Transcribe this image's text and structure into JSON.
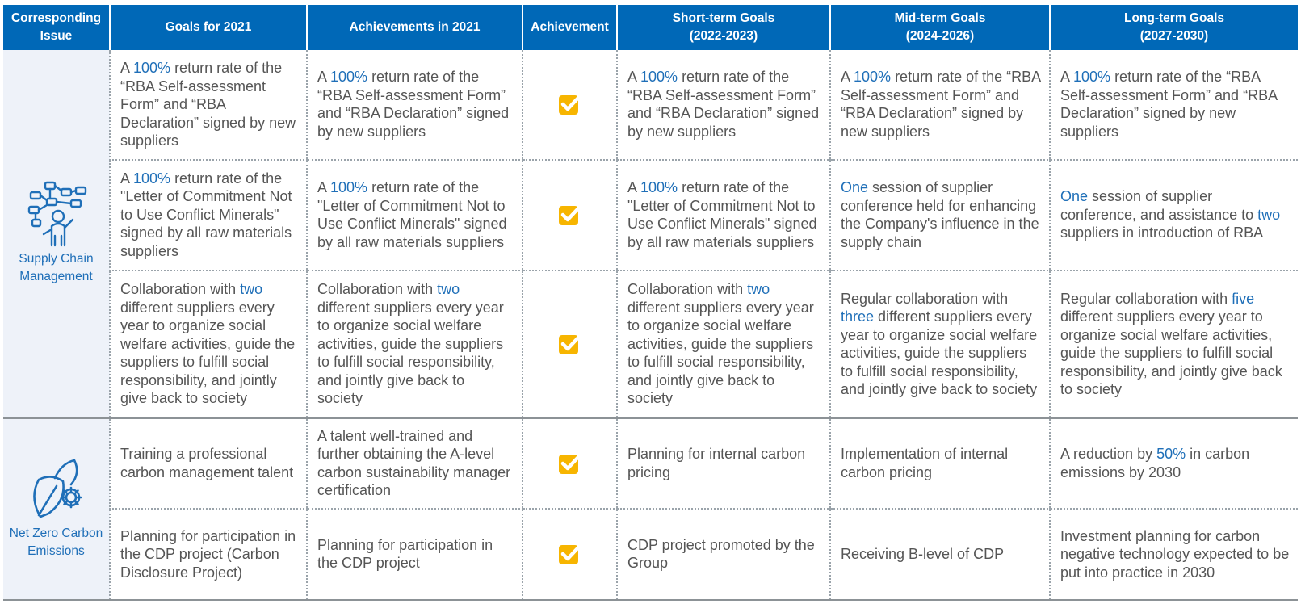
{
  "headers": [
    "Corresponding\nIssue",
    "Goals for 2021",
    "Achievements in 2021",
    "Achievement",
    "Short-term Goals\n(2022-2023)",
    "Mid-term Goals\n(2024-2026)",
    "Long-term Goals\n(2027-2030)"
  ],
  "issues": [
    {
      "label": "Supply Chain\nManagement",
      "icon": "supply-chain-network-icon"
    },
    {
      "label": "Net Zero Carbon\nEmissions",
      "icon": "leaf-gear-icon"
    }
  ],
  "achievement_icon": "checked-box-icon",
  "colors": {
    "header_bg": "#0068b7",
    "highlight": "#1f6fb8",
    "issue_bg": "#eef2f9",
    "check_fill": "#f7b500",
    "text": "#555555"
  },
  "rows": [
    [
      [
        {
          "t": "A "
        },
        {
          "t": "100%",
          "h": true
        },
        {
          "t": " return rate of the “RBA Self-assessment Form” and “RBA Declaration” signed by new suppliers"
        }
      ],
      [
        {
          "t": "A "
        },
        {
          "t": "100%",
          "h": true
        },
        {
          "t": " return rate of the “RBA Self-assessment Form” and “RBA Declaration” signed by new suppliers"
        }
      ],
      [
        {
          "t": "A "
        },
        {
          "t": "100%",
          "h": true
        },
        {
          "t": " return rate of the “RBA Self-assessment Form” and “RBA Declaration” signed by new suppliers"
        }
      ],
      [
        {
          "t": "A "
        },
        {
          "t": "100%",
          "h": true
        },
        {
          "t": " return rate of the “RBA Self-assessment Form” and “RBA Declaration” signed by new suppliers"
        }
      ],
      [
        {
          "t": "A "
        },
        {
          "t": "100%",
          "h": true
        },
        {
          "t": " return rate of the “RBA Self-assessment Form” and “RBA Declaration” signed by new suppliers"
        }
      ]
    ],
    [
      [
        {
          "t": "A "
        },
        {
          "t": "100%",
          "h": true
        },
        {
          "t": " return rate of the \"Letter of Commitment Not to Use Conflict Minerals\" signed by all raw materials suppliers"
        }
      ],
      [
        {
          "t": "A "
        },
        {
          "t": "100%",
          "h": true
        },
        {
          "t": " return rate of the \"Letter of Commitment Not to Use Conflict Minerals\" signed by all raw materials suppliers"
        }
      ],
      [
        {
          "t": "A "
        },
        {
          "t": "100%",
          "h": true
        },
        {
          "t": " return rate of the \"Letter of Commitment Not to Use Conflict Minerals\" signed by all raw materials suppliers"
        }
      ],
      [
        {
          "t": "One",
          "h": true
        },
        {
          "t": " session of supplier conference held for enhancing the Company's influence in the supply chain"
        }
      ],
      [
        {
          "t": "One",
          "h": true
        },
        {
          "t": " session of supplier conference, and assistance to "
        },
        {
          "t": "two",
          "h": true
        },
        {
          "t": " suppliers in introduction of RBA"
        }
      ]
    ],
    [
      [
        {
          "t": "Collaboration with "
        },
        {
          "t": "two",
          "h": true
        },
        {
          "t": " different suppliers every year to organize social welfare activities, guide the suppliers to fulfill social responsibility, and jointly give back to society"
        }
      ],
      [
        {
          "t": "Collaboration with "
        },
        {
          "t": "two",
          "h": true
        },
        {
          "t": " different suppliers every year to organize social welfare activities, guide the suppliers to fulfill social responsibility, and jointly give back to society"
        }
      ],
      [
        {
          "t": "Collaboration with "
        },
        {
          "t": "two",
          "h": true
        },
        {
          "t": " different suppliers every year to organize social welfare activities, guide the suppliers to fulfill social responsibility, and jointly give back to society"
        }
      ],
      [
        {
          "t": "Regular collaboration with "
        },
        {
          "t": "three",
          "h": true
        },
        {
          "t": " different suppliers every year to organize social welfare activities, guide the suppliers to fulfill social responsibility, and jointly give back to society"
        }
      ],
      [
        {
          "t": "Regular collaboration with "
        },
        {
          "t": "five",
          "h": true
        },
        {
          "t": " different suppliers every year to organize social welfare activities, guide the suppliers to fulfill social responsibility, and jointly give back to society"
        }
      ]
    ],
    [
      [
        {
          "t": "Training a professional carbon management talent"
        }
      ],
      [
        {
          "t": "A talent well-trained and further obtaining the A-level carbon sustainability manager certification"
        }
      ],
      [
        {
          "t": "Planning for internal carbon pricing"
        }
      ],
      [
        {
          "t": "Implementation of internal carbon pricing"
        }
      ],
      [
        {
          "t": "A reduction by "
        },
        {
          "t": "50%",
          "h": true
        },
        {
          "t": " in carbon emissions by 2030"
        }
      ]
    ],
    [
      [
        {
          "t": "Planning for participation in the CDP project (Carbon Disclosure Project)"
        }
      ],
      [
        {
          "t": "Planning for participation in the CDP project"
        }
      ],
      [
        {
          "t": "CDP project promoted by the Group"
        }
      ],
      [
        {
          "t": "Receiving B-level of CDP"
        }
      ],
      [
        {
          "t": "Investment planning for carbon negative technology expected to be put into practice in 2030"
        }
      ]
    ]
  ]
}
